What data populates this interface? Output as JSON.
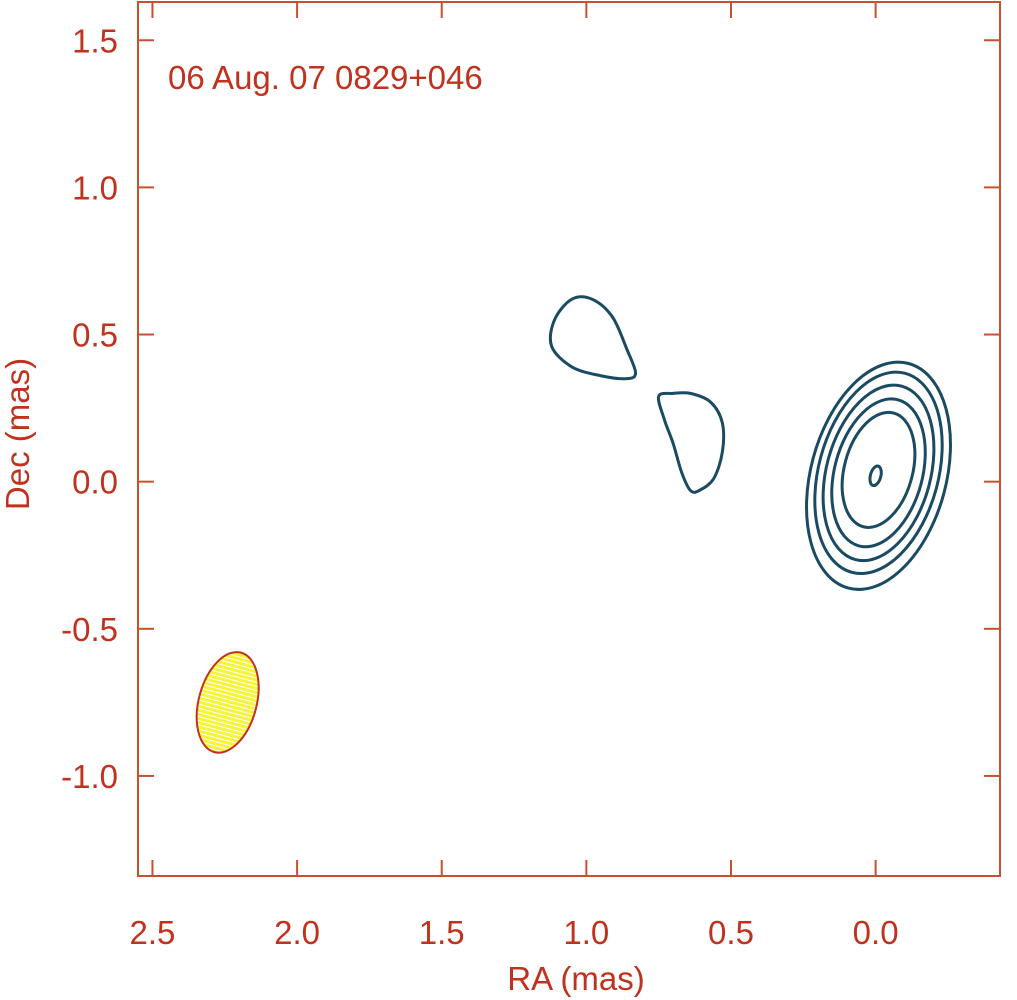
{
  "colors": {
    "axis": "#c8502f",
    "text": "#c0321e",
    "contour": "#1b4b63",
    "beam_fill": "#f7f23a",
    "beam_hatch": "#ffffff",
    "beam_edge": "#c0321e"
  },
  "chart_data": {
    "type": "contour",
    "annotation": "06 Aug. 07  0829+046",
    "xlabel": "RA (mas)",
    "ylabel": "Dec (mas)",
    "xlim": [
      2.55,
      -0.43
    ],
    "ylim": [
      -1.34,
      1.63
    ],
    "x_axis_reversed": true,
    "x_ticks": [
      {
        "value": 2.5,
        "label": "2.5"
      },
      {
        "value": 2.0,
        "label": "2.0"
      },
      {
        "value": 1.5,
        "label": "1.5"
      },
      {
        "value": 1.0,
        "label": "1.0"
      },
      {
        "value": 0.5,
        "label": "0.5"
      },
      {
        "value": 0.0,
        "label": "0.0"
      }
    ],
    "y_ticks": [
      {
        "value": 1.5,
        "label": "1.5"
      },
      {
        "value": 1.0,
        "label": "1.0"
      },
      {
        "value": 0.5,
        "label": "0.5"
      },
      {
        "value": 0.0,
        "label": "0.0"
      },
      {
        "value": -0.5,
        "label": "-0.5"
      },
      {
        "value": -1.0,
        "label": "-1.0"
      }
    ],
    "grid": false,
    "core_contours": [
      {
        "cx": -0.01,
        "cy": 0.02,
        "rx": 0.234,
        "ry": 0.395,
        "angle_deg": -15
      },
      {
        "cx": -0.01,
        "cy": 0.03,
        "rx": 0.207,
        "ry": 0.35,
        "angle_deg": -15
      },
      {
        "cx": -0.01,
        "cy": 0.03,
        "rx": 0.18,
        "ry": 0.305,
        "angle_deg": -15
      },
      {
        "cx": -0.01,
        "cy": 0.03,
        "rx": 0.152,
        "ry": 0.257,
        "angle_deg": -15
      },
      {
        "cx": -0.01,
        "cy": 0.04,
        "rx": 0.118,
        "ry": 0.2,
        "angle_deg": -15
      },
      {
        "cx": 0.0,
        "cy": 0.02,
        "rx": 0.018,
        "ry": 0.034,
        "angle_deg": -15
      }
    ],
    "jet_contours": [
      {
        "name": "component-a",
        "points": [
          [
            0.86,
            0.35
          ],
          [
            0.95,
            0.36
          ],
          [
            1.05,
            0.39
          ],
          [
            1.12,
            0.46
          ],
          [
            1.11,
            0.55
          ],
          [
            1.05,
            0.62
          ],
          [
            0.98,
            0.62
          ],
          [
            0.91,
            0.56
          ],
          [
            0.86,
            0.45
          ],
          [
            0.83,
            0.37
          ]
        ]
      },
      {
        "name": "component-b",
        "points": [
          [
            0.75,
            0.29
          ],
          [
            0.7,
            0.3
          ],
          [
            0.64,
            0.3
          ],
          [
            0.57,
            0.27
          ],
          [
            0.53,
            0.2
          ],
          [
            0.53,
            0.1
          ],
          [
            0.56,
            0.01
          ],
          [
            0.61,
            -0.03
          ],
          [
            0.64,
            -0.03
          ],
          [
            0.67,
            0.03
          ],
          [
            0.7,
            0.13
          ],
          [
            0.73,
            0.21
          ]
        ]
      }
    ],
    "beam": {
      "cx": 2.24,
      "cy": -0.75,
      "rx": 0.1,
      "ry": 0.175,
      "angle_deg": -15
    }
  }
}
